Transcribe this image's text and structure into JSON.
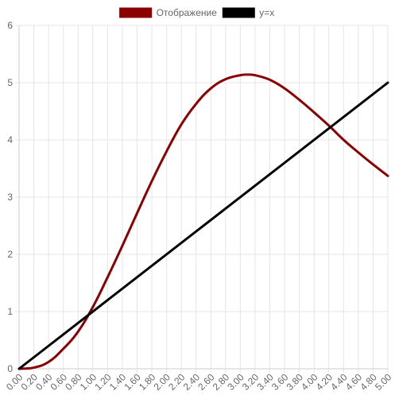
{
  "legend": [
    {
      "label": "Отображение",
      "color": "#8b0000"
    },
    {
      "label": "y=x",
      "color": "#000000"
    }
  ],
  "chart_data": {
    "type": "line",
    "title": "",
    "xlabel": "",
    "ylabel": "",
    "xlim": [
      0,
      5
    ],
    "ylim": [
      0,
      6
    ],
    "x_ticks": [
      "0.00",
      "0.20",
      "0.40",
      "0.60",
      "0.80",
      "1.00",
      "1.20",
      "1.40",
      "1.60",
      "1.80",
      "2.00",
      "2.20",
      "2.40",
      "2.60",
      "2.80",
      "3.00",
      "3.20",
      "3.40",
      "3.60",
      "3.80",
      "4.00",
      "4.20",
      "4.40",
      "4.60",
      "4.80",
      "5.00"
    ],
    "y_ticks": [
      "0",
      "1",
      "2",
      "3",
      "4",
      "5",
      "6"
    ],
    "grid": true,
    "legend_position": "top",
    "series": [
      {
        "name": "Отображение",
        "color": "#8b0000",
        "x": [
          0,
          0.2,
          0.4,
          0.6,
          0.8,
          1.0,
          1.2,
          1.4,
          1.6,
          1.8,
          2.0,
          2.2,
          2.4,
          2.6,
          2.8,
          3.0,
          3.1,
          3.2,
          3.4,
          3.6,
          3.8,
          4.0,
          4.2,
          4.4,
          4.6,
          4.8,
          5.0
        ],
        "y": [
          0,
          0.02,
          0.12,
          0.35,
          0.65,
          1.08,
          1.6,
          2.15,
          2.72,
          3.28,
          3.8,
          4.27,
          4.63,
          4.9,
          5.06,
          5.13,
          5.14,
          5.13,
          5.05,
          4.9,
          4.7,
          4.48,
          4.25,
          4.0,
          3.78,
          3.57,
          3.37
        ]
      },
      {
        "name": "y=x",
        "color": "#000000",
        "x": [
          0,
          5
        ],
        "y": [
          0,
          5
        ]
      }
    ]
  }
}
